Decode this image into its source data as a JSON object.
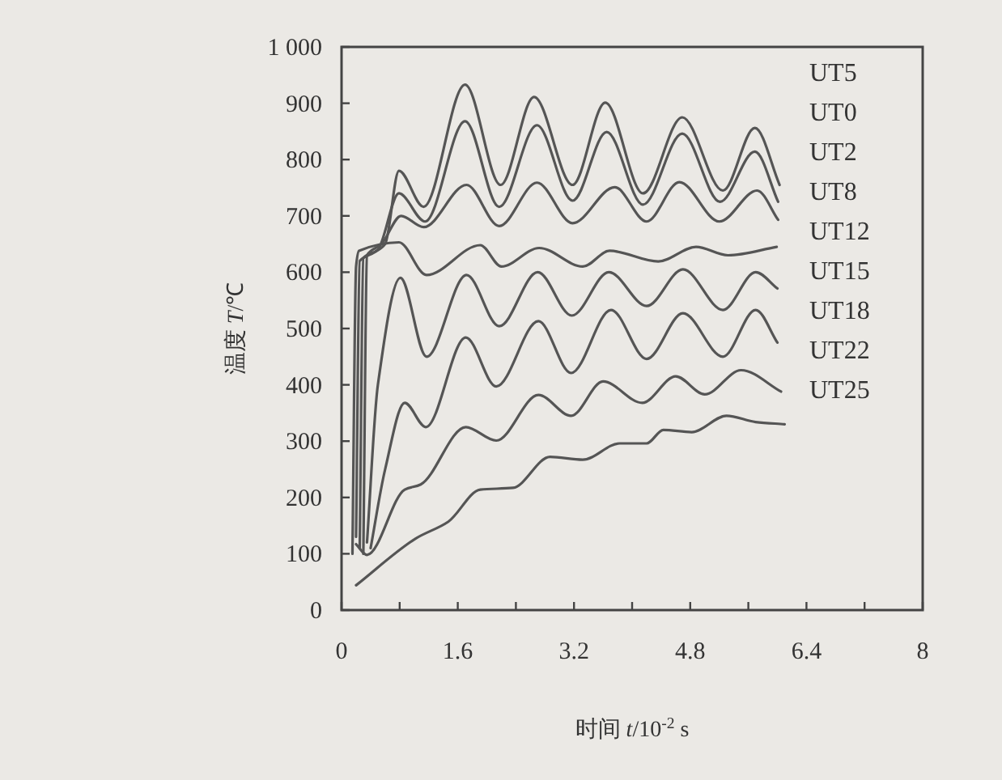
{
  "chart_data": {
    "type": "line",
    "xlabel": "时间 *t*/10$^{-2}$ s",
    "ylabel": "温度 *T*/℃",
    "xlim": [
      0,
      8
    ],
    "ylim": [
      0,
      1000
    ],
    "xticks": [
      0,
      {
        "value": 0.8,
        "label": null
      },
      1.6,
      {
        "value": 2.4,
        "label": null
      },
      3.2,
      {
        "value": 4,
        "label": null
      },
      4.8,
      {
        "value": 5.6,
        "label": null
      },
      6.4,
      {
        "value": 7.2,
        "label": null
      },
      8
    ],
    "yticks": [
      0,
      100,
      200,
      300,
      400,
      500,
      600,
      700,
      800,
      900,
      {
        "value": 1000,
        "label": "1 000"
      }
    ],
    "annotations": [
      "UT5",
      "UT0",
      "UT2",
      "UT8",
      "UT12",
      "UT15",
      "UT18",
      "UT22",
      "UT25"
    ],
    "series": [
      {
        "color": "#555555",
        "x": [
          0.2,
          0.25,
          0.45,
          0.6,
          0.79,
          1.13,
          1.7,
          2.19,
          2.65,
          3.18,
          3.63,
          4.15,
          4.69,
          5.25,
          5.69,
          6.03
        ],
        "values": [
          130,
          620,
          635,
          650,
          780,
          716,
          933,
          755,
          911,
          755,
          901,
          740,
          875,
          745,
          856,
          755
        ]
      },
      {
        "color": "#555555",
        "x": [
          0.25,
          0.3,
          0.5,
          0.79,
          1.15,
          1.7,
          2.17,
          2.69,
          3.18,
          3.65,
          4.15,
          4.69,
          5.21,
          5.69,
          6.01
        ],
        "values": [
          110,
          625,
          640,
          740,
          690,
          868,
          716,
          861,
          727,
          849,
          720,
          846,
          725,
          814,
          725
        ]
      },
      {
        "color": "#555555",
        "x": [
          0.3,
          0.35,
          0.55,
          0.82,
          1.13,
          1.72,
          2.17,
          2.69,
          3.18,
          3.76,
          4.2,
          4.65,
          5.2,
          5.72,
          6.01
        ],
        "values": [
          100,
          630,
          650,
          700,
          680,
          755,
          682,
          759,
          687,
          751,
          690,
          760,
          690,
          745,
          693
        ]
      },
      {
        "color": "#555555",
        "x": [
          0.15,
          0.2,
          0.24,
          0.79,
          1.17,
          1.91,
          2.2,
          2.72,
          3.32,
          3.69,
          4.36,
          4.88,
          5.32,
          5.99
        ],
        "values": [
          100,
          610,
          638,
          653,
          595,
          648,
          610,
          643,
          610,
          638,
          619,
          645,
          630,
          645
        ]
      },
      {
        "color": "#555555",
        "x": [
          0.35,
          0.5,
          0.81,
          1.17,
          1.72,
          2.17,
          2.7,
          3.17,
          3.68,
          4.2,
          4.7,
          5.25,
          5.7,
          6.0
        ],
        "values": [
          120,
          400,
          590,
          450,
          595,
          504,
          600,
          523,
          600,
          540,
          605,
          533,
          600,
          571
        ]
      },
      {
        "color": "#555555",
        "x": [
          0.4,
          0.6,
          0.87,
          1.16,
          1.71,
          2.13,
          2.71,
          3.16,
          3.71,
          4.2,
          4.7,
          5.25,
          5.7,
          6.0
        ],
        "values": [
          110,
          250,
          368,
          325,
          484,
          397,
          513,
          421,
          533,
          446,
          527,
          450,
          533,
          475
        ]
      },
      {
        "color": "#555555",
        "x": [
          0.2,
          0.35,
          0.87,
          1.09,
          1.71,
          2.13,
          2.71,
          3.16,
          3.6,
          4.14,
          4.6,
          5.0,
          5.5,
          6.05
        ],
        "values": [
          117,
          98,
          214,
          223,
          325,
          301,
          382,
          345,
          406,
          368,
          415,
          383,
          426,
          388
        ]
      },
      {
        "color": "#555555",
        "x": [
          0.2,
          1.02,
          1.47,
          1.91,
          2.36,
          2.87,
          3.32,
          3.83,
          4.2,
          4.43,
          4.82,
          5.3,
          5.7,
          6.1
        ],
        "values": [
          44,
          127,
          157,
          214,
          217,
          272,
          267,
          296,
          296,
          320,
          316,
          345,
          334,
          330
        ]
      }
    ]
  }
}
